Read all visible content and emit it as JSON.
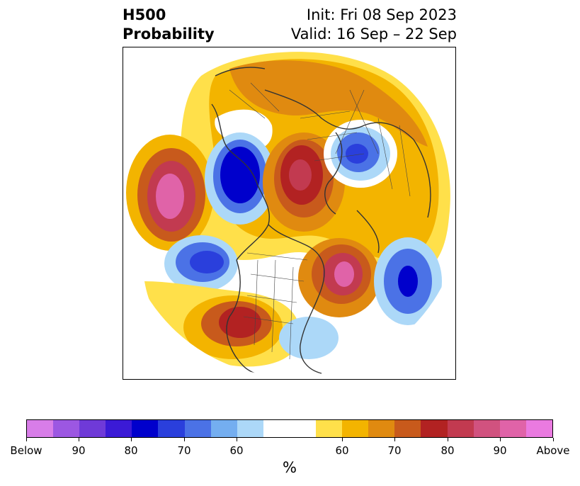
{
  "title": {
    "left_line1": "H500",
    "left_line2": "Probability",
    "right_line1": "Init: Fri 08 Sep 2023",
    "right_line2": "Valid: 16 Sep – 22 Sep"
  },
  "colorbar": {
    "colors": [
      "#d87de8",
      "#9c57e2",
      "#6f3ad8",
      "#3b1ad6",
      "#0000cc",
      "#2a3fdc",
      "#4b72e6",
      "#74aef0",
      "#acd8f8",
      "#ffffff",
      "#ffe04a",
      "#f3b400",
      "#e08a10",
      "#c85a1c",
      "#b22222",
      "#c23a50",
      "#d1527f",
      "#e063a8",
      "#ea7ae0"
    ],
    "tick_labels": [
      "Below",
      "90",
      "80",
      "70",
      "60",
      "60",
      "70",
      "80",
      "90",
      "Above"
    ],
    "unit": "%"
  },
  "map": {
    "anomaly_colors": {
      "below_strong": "#0000cc",
      "below_mid": "#4b72e6",
      "below_weak": "#acd8f8",
      "above_weak": "#ffe04a",
      "above_mid": "#e08a10",
      "above_strong": "#b22222",
      "above_extreme": "#d1527f"
    }
  }
}
